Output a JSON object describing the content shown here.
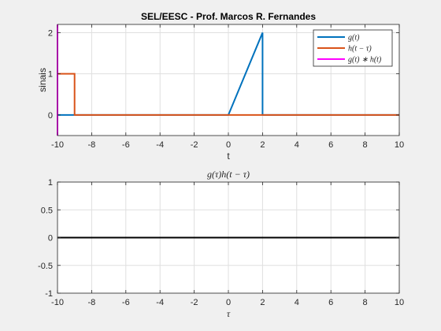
{
  "figure": {
    "background": "#f0f0f0"
  },
  "chart_data": [
    {
      "type": "line",
      "title": "SEL/EESC - Prof. Marcos R. Fernandes",
      "xlabel": "t",
      "ylabel": "sinais",
      "xlim": [
        -10,
        10
      ],
      "ylim": [
        -0.5,
        2.2
      ],
      "xticks": [
        -10,
        -8,
        -6,
        -4,
        -2,
        0,
        2,
        4,
        6,
        8,
        10
      ],
      "yticks": [
        0,
        1,
        2
      ],
      "grid": true,
      "legend_position": "top-right",
      "series": [
        {
          "name": "g(t)",
          "color": "#0072bd",
          "x": [
            -10,
            0,
            2,
            2,
            10
          ],
          "y": [
            0,
            0,
            2,
            0,
            0
          ]
        },
        {
          "name": "h(t − τ)",
          "color": "#d95319",
          "x": [
            -10,
            -9,
            -9,
            10
          ],
          "y": [
            1,
            1,
            0,
            0
          ]
        },
        {
          "name": "g(t) ∗ h(t)",
          "color": "#ff00ff",
          "x": [
            -10,
            -10
          ],
          "y": [
            -0.5,
            2.2
          ]
        }
      ]
    },
    {
      "type": "line",
      "title": "g(τ)h(t − τ)",
      "xlabel": "τ",
      "ylabel": "",
      "xlim": [
        -10,
        10
      ],
      "ylim": [
        -1,
        1
      ],
      "xticks": [
        -10,
        -8,
        -6,
        -4,
        -2,
        0,
        2,
        4,
        6,
        8,
        10
      ],
      "yticks": [
        -1,
        -0.5,
        0,
        0.5,
        1
      ],
      "grid": true,
      "series": [
        {
          "color": "#000000",
          "x": [
            -10,
            10
          ],
          "y": [
            0,
            0
          ]
        }
      ]
    }
  ]
}
